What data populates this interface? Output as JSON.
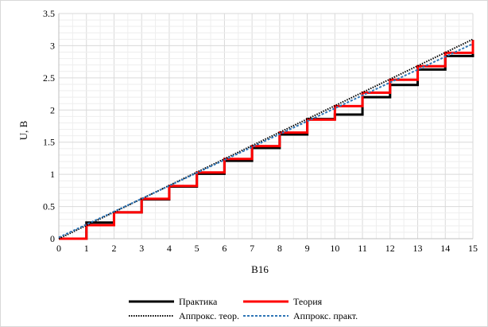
{
  "chart_data": {
    "type": "line",
    "title": "",
    "xlabel": "B16",
    "ylabel": "U, B",
    "xlim": [
      0,
      15
    ],
    "ylim": [
      0,
      3.5
    ],
    "xticks": [
      "0",
      "1",
      "2",
      "3",
      "4",
      "5",
      "6",
      "7",
      "8",
      "9",
      "10",
      "11",
      "12",
      "13",
      "14",
      "15"
    ],
    "yticks": [
      "0",
      "0.5",
      "1",
      "1.5",
      "2",
      "2.5",
      "3",
      "3.5"
    ],
    "grid": true,
    "legend_position": "bottom",
    "series": [
      {
        "name": "Практика",
        "style": "step",
        "color": "#000000",
        "x": [
          0,
          1,
          2,
          3,
          4,
          5,
          6,
          7,
          8,
          9,
          10,
          11,
          12,
          13,
          14,
          15
        ],
        "y": [
          0,
          0.25,
          0.41,
          0.61,
          0.81,
          1.01,
          1.21,
          1.41,
          1.62,
          1.86,
          1.93,
          2.2,
          2.39,
          2.63,
          2.84,
          3.07
        ]
      },
      {
        "name": "Теория",
        "style": "step",
        "color": "#ff0000",
        "x": [
          0,
          1,
          2,
          3,
          4,
          5,
          6,
          7,
          8,
          9,
          10,
          11,
          12,
          13,
          14,
          15
        ],
        "y": [
          0,
          0.21,
          0.41,
          0.62,
          0.82,
          1.03,
          1.24,
          1.44,
          1.65,
          1.85,
          2.06,
          2.27,
          2.47,
          2.68,
          2.89,
          3.09
        ]
      },
      {
        "name": "Аппрокс. теор.",
        "style": "dotted",
        "color": "#000000",
        "x": [
          0,
          15
        ],
        "y": [
          0,
          3.1
        ]
      },
      {
        "name": "Аппрокс. практ.",
        "style": "dashed",
        "color": "#2e75b6",
        "x": [
          0,
          15
        ],
        "y": [
          0.02,
          3.03
        ]
      }
    ]
  }
}
